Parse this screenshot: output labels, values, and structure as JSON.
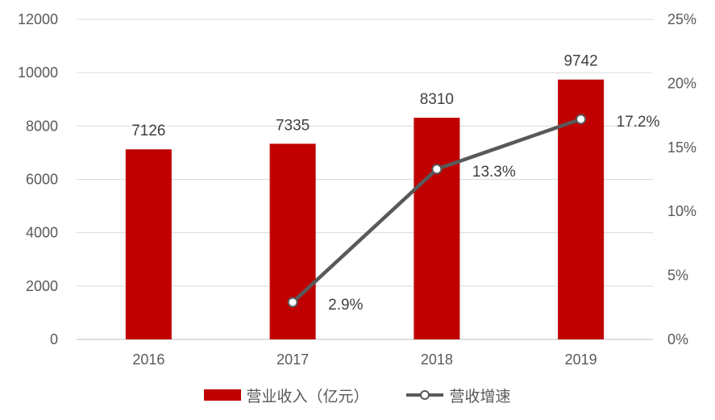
{
  "chart_data": {
    "type": "bar",
    "categories": [
      "2016",
      "2017",
      "2018",
      "2019"
    ],
    "series": [
      {
        "name": "营业收入（亿元）",
        "type": "bar",
        "axis": "left",
        "values": [
          7126,
          7335,
          8310,
          9742
        ],
        "labels": [
          "7126",
          "7335",
          "8310",
          "9742"
        ],
        "color": "#C00000"
      },
      {
        "name": "营收增速",
        "type": "line",
        "axis": "right",
        "values": [
          null,
          2.9,
          13.3,
          17.2
        ],
        "labels": [
          "",
          "2.9%",
          "13.3%",
          "17.2%"
        ],
        "color": "#595959"
      }
    ],
    "left_axis": {
      "ylim": [
        0,
        12000
      ],
      "ticks": [
        "0",
        "2000",
        "4000",
        "6000",
        "8000",
        "10000",
        "12000"
      ]
    },
    "right_axis": {
      "ylim": [
        0,
        25
      ],
      "ticks": [
        "0%",
        "5%",
        "10%",
        "15%",
        "20%",
        "25%"
      ]
    },
    "grid": true,
    "legend": "bottom-center",
    "title": "",
    "xlabel": "",
    "ylabel": ""
  }
}
